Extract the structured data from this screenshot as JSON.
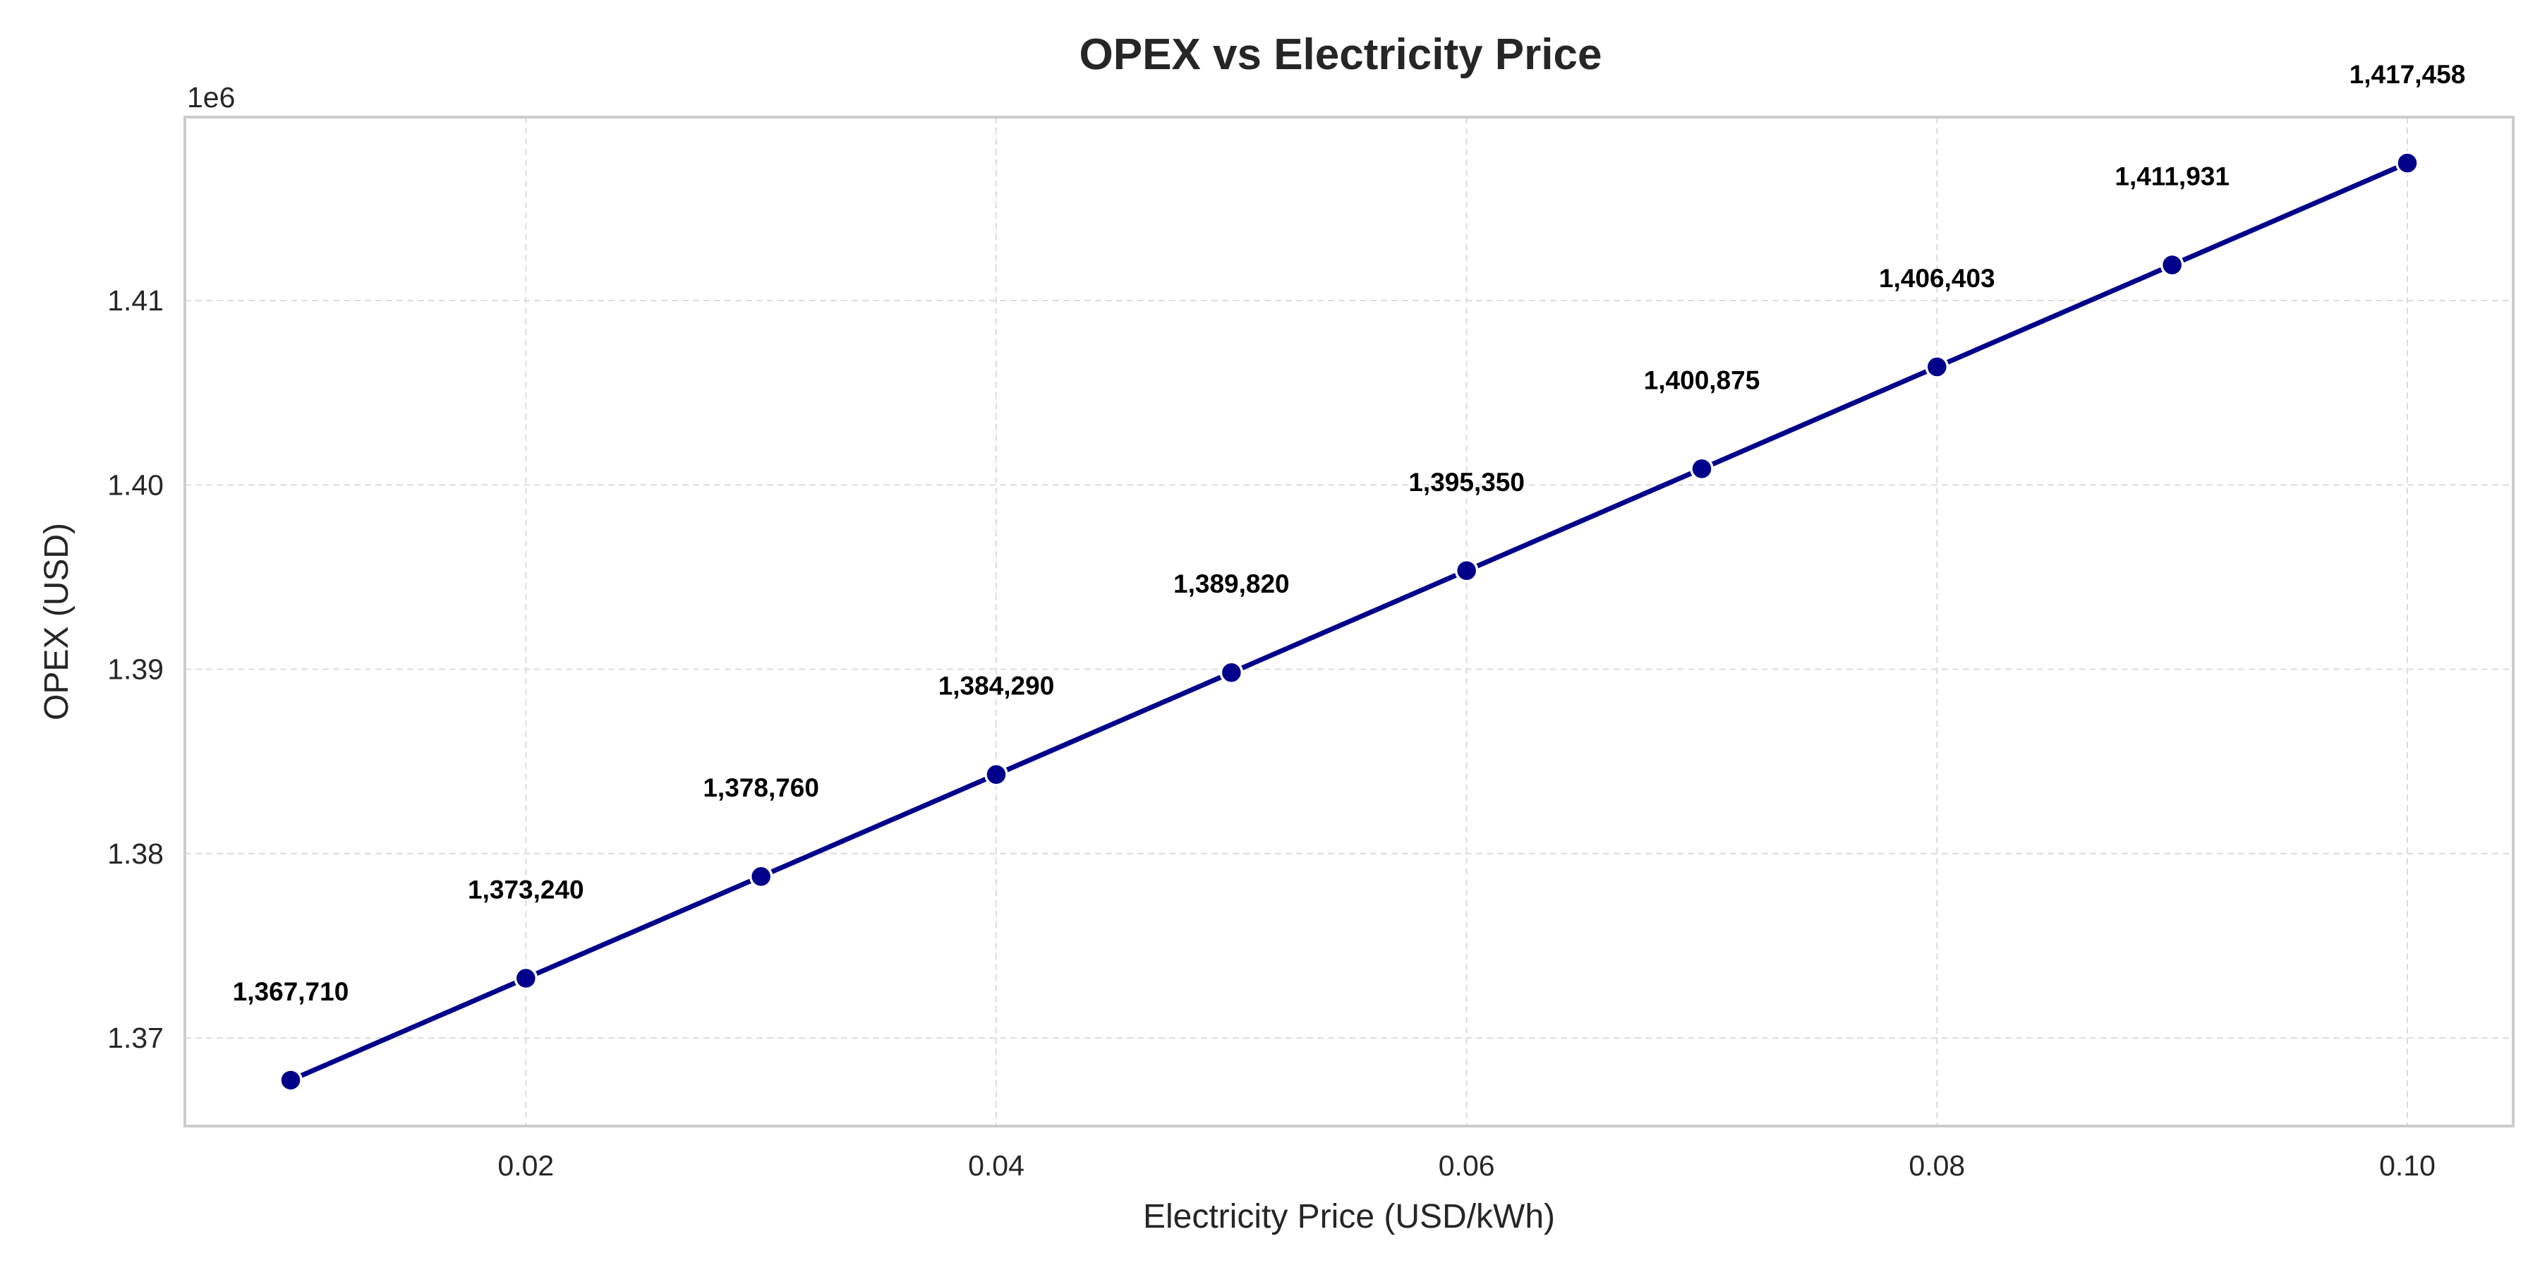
{
  "chart_data": {
    "type": "line",
    "title": "OPEX vs Electricity Price",
    "xlabel": "Electricity Price (USD/kWh)",
    "ylabel": "OPEX (USD)",
    "y_offset_label": "1e6",
    "x": [
      0.01,
      0.02,
      0.03,
      0.04,
      0.05,
      0.06,
      0.07,
      0.08,
      0.09,
      0.1
    ],
    "series": [
      {
        "values": [
          1367710,
          1373240,
          1378760,
          1384290,
          1389820,
          1395350,
          1400875,
          1406403,
          1411931,
          1417458
        ],
        "color": "#00008b"
      }
    ],
    "data_labels": [
      "1,367,710",
      "1,373,240",
      "1,378,760",
      "1,384,290",
      "1,389,820",
      "1,395,350",
      "1,400,875",
      "1,406,403",
      "1,411,931",
      "1,417,458"
    ],
    "xticks": [
      0.02,
      0.04,
      0.06,
      0.08,
      0.1
    ],
    "xtick_labels": [
      "0.02",
      "0.04",
      "0.06",
      "0.08",
      "0.10"
    ],
    "yticks": [
      1.37,
      1.38,
      1.39,
      1.4,
      1.41
    ],
    "ytick_labels": [
      "1.37",
      "1.38",
      "1.39",
      "1.40",
      "1.41"
    ],
    "xlim": [
      0.0055,
      0.1045
    ],
    "ylim": [
      1365220,
      1419950
    ],
    "grid": true,
    "marker": "circle"
  }
}
